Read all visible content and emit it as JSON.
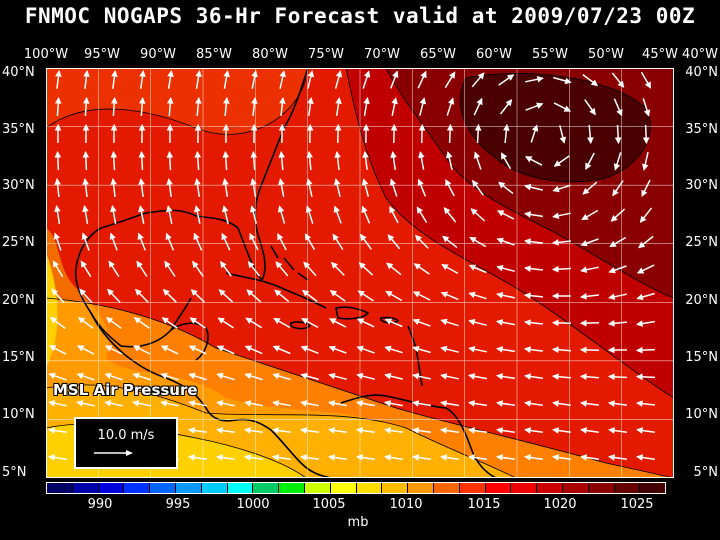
{
  "title": "FNMOC NOGAPS 36-Hr Forecast valid at 2009/07/23 00Z",
  "lon_labels": [
    "100°W",
    "95°W",
    "90°W",
    "85°W",
    "80°W",
    "75°W",
    "70°W",
    "65°W",
    "60°W",
    "55°W",
    "50°W",
    "45°W",
    "40°W"
  ],
  "lat_labels": [
    "40°N",
    "35°N",
    "30°N",
    "25°N",
    "20°N",
    "15°N",
    "10°N",
    "5°N"
  ],
  "parameter_label": "MSL Air Pressure",
  "scale_label": "10.0 m/s",
  "colorbar": {
    "unit": "mb",
    "labels": [
      "990",
      "995",
      "1000",
      "1005",
      "1010",
      "1015",
      "1020",
      "1025"
    ],
    "colors": [
      "#000066",
      "#0000aa",
      "#0000dd",
      "#0033ff",
      "#0066ff",
      "#0099ff",
      "#00ccff",
      "#00ffff",
      "#00cc66",
      "#00ee00",
      "#ccff00",
      "#ffff00",
      "#ffdd00",
      "#ffbb00",
      "#ff9900",
      "#ff6600",
      "#ff3300",
      "#ff0000",
      "#ee0000",
      "#cc0000",
      "#aa0000",
      "#880000",
      "#660000",
      "#440000"
    ]
  },
  "colors": {
    "very_high": "#4a0000",
    "high": "#8a0000",
    "mid_high": "#c00000",
    "mid": "#e31a00",
    "mid_low": "#f34000",
    "low": "#ff8000",
    "lower": "#ffb000",
    "lowest": "#ffd000"
  }
}
